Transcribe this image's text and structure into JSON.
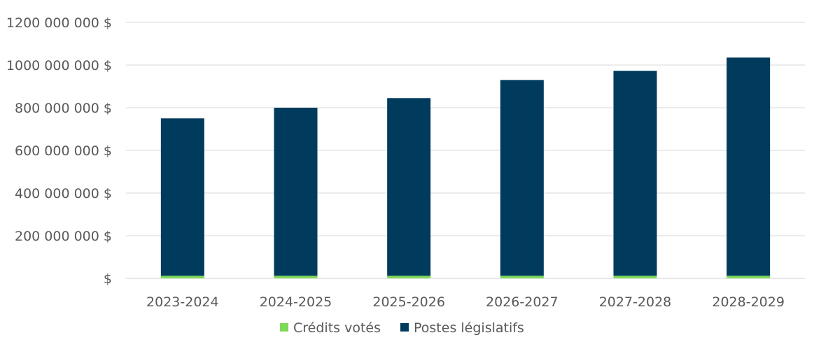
{
  "chart_data": {
    "type": "bar",
    "stacked": true,
    "categories": [
      "2023-2024",
      "2024-2025",
      "2025-2026",
      "2026-2027",
      "2027-2028",
      "2028-2029"
    ],
    "series": [
      {
        "name": "Crédits votés",
        "color": "#7ED957",
        "values": [
          12000000,
          12000000,
          12000000,
          12000000,
          12000000,
          12000000
        ]
      },
      {
        "name": "Postes législatifs",
        "color": "#003A5D",
        "values": [
          738000000,
          788000000,
          833000000,
          918000000,
          961000000,
          1023000000
        ]
      }
    ],
    "yticks": [
      {
        "value": 0,
        "label": "$"
      },
      {
        "value": 200000000,
        "label": "200 000 000 $"
      },
      {
        "value": 400000000,
        "label": "400 000 000 $"
      },
      {
        "value": 600000000,
        "label": "600 000 000 $"
      },
      {
        "value": 800000000,
        "label": "800 000 000 $"
      },
      {
        "value": 1000000000,
        "label": "1000 000 000 $"
      },
      {
        "value": 1200000000,
        "label": "1200 000 000 $"
      }
    ],
    "ylim": [
      0,
      1200000000
    ],
    "grid": true,
    "legend": "bottom",
    "title": "",
    "xlabel": "",
    "ylabel": ""
  }
}
